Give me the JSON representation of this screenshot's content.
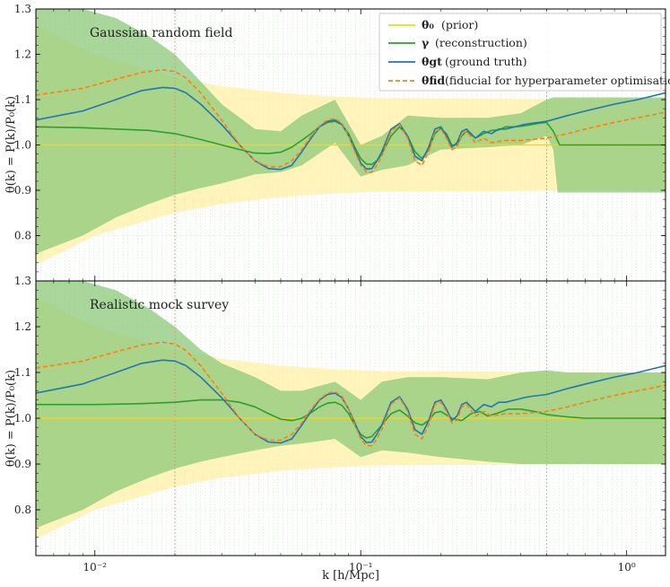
{
  "chart_data": [
    {
      "type": "line",
      "title": "Gaussian random field",
      "xlabel": "k [h/Mpc]",
      "ylabel": "θ(k) = P(k)/P₀(k)",
      "xscale": "log",
      "xlim": [
        0.006,
        1.4
      ],
      "ylim": [
        0.7,
        1.3
      ],
      "yticks": [
        "0.8",
        "0.9",
        "1.0",
        "1.1",
        "1.2",
        "1.3"
      ],
      "xticks": [
        "10⁻²",
        "10⁻¹",
        "10⁰"
      ],
      "grid": true,
      "vertical_markers_k": [
        0.02,
        0.5
      ],
      "series": [
        {
          "name": "θ₀ (prior)",
          "color": "#f5d617",
          "x": [
            0.006,
            1.4
          ],
          "y": [
            1.0,
            1.0
          ]
        },
        {
          "name": "γ (reconstruction)",
          "color": "#2ca02c",
          "x": [
            0.006,
            0.009,
            0.012,
            0.016,
            0.02,
            0.025,
            0.03,
            0.035,
            0.04,
            0.045,
            0.05,
            0.055,
            0.06,
            0.065,
            0.07,
            0.075,
            0.08,
            0.085,
            0.09,
            0.095,
            0.1,
            0.105,
            0.11,
            0.115,
            0.12,
            0.13,
            0.14,
            0.15,
            0.16,
            0.17,
            0.18,
            0.19,
            0.2,
            0.21,
            0.22,
            0.23,
            0.24,
            0.25,
            0.27,
            0.29,
            0.31,
            0.33,
            0.35,
            0.38,
            0.41,
            0.44,
            0.47,
            0.5,
            0.53,
            0.56,
            0.6,
            0.7,
            0.9,
            1.4
          ],
          "y": [
            1.04,
            1.038,
            1.035,
            1.032,
            1.025,
            1.012,
            1.0,
            0.99,
            0.982,
            0.981,
            0.984,
            0.995,
            1.01,
            1.025,
            1.04,
            1.05,
            1.052,
            1.045,
            1.025,
            0.995,
            0.97,
            0.958,
            0.957,
            0.965,
            0.98,
            1.02,
            1.04,
            1.02,
            0.985,
            0.97,
            0.99,
            1.025,
            1.037,
            1.025,
            1.0,
            1.0,
            1.02,
            1.03,
            1.015,
            1.025,
            1.032,
            1.033,
            1.04,
            1.04,
            1.042,
            1.045,
            1.048,
            1.05,
            1.03,
            1.0,
            1.0,
            1.0,
            1.0,
            1.0
          ]
        },
        {
          "name": "θgt (ground truth)",
          "color": "#1f77b4",
          "x": [
            0.006,
            0.009,
            0.012,
            0.015,
            0.018,
            0.02,
            0.022,
            0.025,
            0.03,
            0.035,
            0.04,
            0.045,
            0.05,
            0.055,
            0.06,
            0.065,
            0.07,
            0.075,
            0.08,
            0.085,
            0.09,
            0.095,
            0.1,
            0.105,
            0.11,
            0.115,
            0.12,
            0.13,
            0.14,
            0.15,
            0.16,
            0.17,
            0.18,
            0.19,
            0.2,
            0.21,
            0.22,
            0.23,
            0.24,
            0.25,
            0.27,
            0.29,
            0.31,
            0.33,
            0.35,
            0.38,
            0.41,
            0.44,
            0.47,
            0.5,
            0.6,
            0.7,
            0.9,
            1.1,
            1.4
          ],
          "y": [
            1.055,
            1.075,
            1.1,
            1.12,
            1.127,
            1.125,
            1.115,
            1.09,
            1.045,
            1.0,
            0.965,
            0.948,
            0.946,
            0.955,
            0.985,
            1.015,
            1.04,
            1.052,
            1.055,
            1.045,
            1.02,
            0.99,
            0.96,
            0.947,
            0.948,
            0.965,
            0.985,
            1.035,
            1.047,
            1.02,
            0.975,
            0.965,
            0.995,
            1.035,
            1.04,
            1.02,
            0.995,
            1.005,
            1.03,
            1.035,
            1.015,
            1.03,
            1.025,
            1.035,
            1.035,
            1.04,
            1.045,
            1.048,
            1.05,
            1.052,
            1.065,
            1.075,
            1.09,
            1.1,
            1.115
          ]
        },
        {
          "name": "θfid (fiducial for hyperparameter optimisation)",
          "color": "#ff7f0e",
          "dashed": true,
          "x": [
            0.006,
            0.009,
            0.012,
            0.015,
            0.018,
            0.02,
            0.022,
            0.025,
            0.03,
            0.035,
            0.04,
            0.045,
            0.05,
            0.055,
            0.06,
            0.065,
            0.07,
            0.075,
            0.08,
            0.085,
            0.09,
            0.095,
            0.1,
            0.105,
            0.11,
            0.115,
            0.12,
            0.13,
            0.14,
            0.15,
            0.16,
            0.17,
            0.18,
            0.19,
            0.2,
            0.21,
            0.22,
            0.23,
            0.24,
            0.25,
            0.27,
            0.29,
            0.31,
            0.35,
            0.4,
            0.5,
            0.6,
            0.7,
            0.9,
            1.1,
            1.4
          ],
          "y": [
            1.11,
            1.125,
            1.145,
            1.16,
            1.166,
            1.162,
            1.148,
            1.115,
            1.055,
            1.0,
            0.965,
            0.952,
            0.952,
            0.965,
            0.99,
            1.02,
            1.042,
            1.055,
            1.058,
            1.048,
            1.02,
            0.985,
            0.955,
            0.94,
            0.94,
            0.955,
            0.975,
            1.03,
            1.045,
            1.015,
            0.965,
            0.955,
            0.985,
            1.03,
            1.035,
            1.015,
            0.99,
            0.995,
            1.025,
            1.03,
            1.005,
            1.015,
            1.005,
            1.01,
            1.01,
            1.015,
            1.025,
            1.035,
            1.05,
            1.06,
            1.072
          ]
        }
      ],
      "bands": [
        {
          "name": "prior band",
          "color": "#fff2b0",
          "x": [
            0.006,
            0.01,
            0.02,
            0.03,
            0.05,
            0.08,
            0.12,
            1.4
          ],
          "lower": [
            0.735,
            0.8,
            0.85,
            0.87,
            0.885,
            0.893,
            0.897,
            0.9
          ],
          "upper": [
            1.265,
            1.2,
            1.15,
            1.13,
            1.115,
            1.107,
            1.103,
            1.1
          ]
        },
        {
          "name": "reconstruction band",
          "color": "#8cc97a",
          "x": [
            0.006,
            0.009,
            0.012,
            0.016,
            0.02,
            0.025,
            0.03,
            0.04,
            0.05,
            0.06,
            0.08,
            0.1,
            0.12,
            0.15,
            0.2,
            0.3,
            0.4,
            0.5,
            0.53,
            0.55,
            1.4
          ],
          "lower": [
            0.76,
            0.8,
            0.84,
            0.87,
            0.89,
            0.905,
            0.915,
            0.935,
            0.94,
            0.955,
            1.005,
            0.93,
            0.945,
            0.955,
            0.99,
            0.995,
            1.0,
            1.02,
            0.99,
            0.895,
            0.895
          ],
          "upper": [
            1.3,
            1.3,
            1.28,
            1.24,
            1.2,
            1.14,
            1.09,
            1.035,
            1.03,
            1.065,
            1.1,
            1.0,
            1.02,
            1.065,
            1.06,
            1.06,
            1.07,
            1.1,
            1.105,
            1.105,
            1.105
          ]
        }
      ]
    },
    {
      "type": "line",
      "title": "Realistic mock survey",
      "xlabel": "k [h/Mpc]",
      "ylabel": "θ(k) = P(k)/P₀(k)",
      "xscale": "log",
      "xlim": [
        0.006,
        1.4
      ],
      "ylim": [
        0.7,
        1.3
      ],
      "yticks": [
        "0.8",
        "0.9",
        "1.0",
        "1.1",
        "1.2",
        "1.3"
      ],
      "xticks": [
        "10⁻²",
        "10⁻¹",
        "10⁰"
      ],
      "grid": true,
      "vertical_markers_k": [
        0.02,
        0.5
      ],
      "series": [
        {
          "name": "θ₀ (prior)",
          "color": "#f5d617",
          "x": [
            0.006,
            1.4
          ],
          "y": [
            1.0,
            1.0
          ]
        },
        {
          "name": "γ (reconstruction)",
          "color": "#2ca02c",
          "x": [
            0.006,
            0.01,
            0.015,
            0.02,
            0.025,
            0.03,
            0.035,
            0.04,
            0.045,
            0.05,
            0.055,
            0.06,
            0.065,
            0.07,
            0.075,
            0.08,
            0.085,
            0.09,
            0.095,
            0.1,
            0.105,
            0.11,
            0.12,
            0.13,
            0.14,
            0.15,
            0.16,
            0.17,
            0.18,
            0.19,
            0.2,
            0.22,
            0.24,
            0.26,
            0.28,
            0.3,
            0.33,
            0.36,
            0.4,
            0.45,
            0.5,
            0.6,
            0.7,
            0.9,
            1.1,
            1.4
          ],
          "y": [
            1.03,
            1.03,
            1.032,
            1.035,
            1.04,
            1.04,
            1.035,
            1.025,
            1.01,
            0.998,
            0.995,
            1.0,
            1.012,
            1.025,
            1.033,
            1.035,
            1.028,
            1.01,
            0.985,
            0.965,
            0.957,
            0.96,
            0.985,
            1.01,
            1.018,
            1.005,
            0.99,
            0.985,
            0.995,
            1.012,
            1.015,
            1.0,
            0.995,
            1.01,
            1.015,
            1.005,
            1.012,
            1.02,
            1.02,
            1.015,
            1.008,
            1.003,
            1.0,
            1.0,
            1.0,
            1.0
          ]
        },
        {
          "name": "θgt (ground truth)",
          "color": "#1f77b4",
          "x": [
            0.006,
            0.009,
            0.012,
            0.015,
            0.018,
            0.02,
            0.022,
            0.025,
            0.03,
            0.035,
            0.04,
            0.045,
            0.05,
            0.055,
            0.06,
            0.065,
            0.07,
            0.075,
            0.08,
            0.085,
            0.09,
            0.095,
            0.1,
            0.105,
            0.11,
            0.115,
            0.12,
            0.13,
            0.14,
            0.15,
            0.16,
            0.17,
            0.18,
            0.19,
            0.2,
            0.21,
            0.22,
            0.23,
            0.24,
            0.25,
            0.27,
            0.29,
            0.31,
            0.33,
            0.35,
            0.38,
            0.41,
            0.44,
            0.47,
            0.5,
            0.6,
            0.7,
            0.9,
            1.1,
            1.4
          ],
          "y": [
            1.055,
            1.075,
            1.1,
            1.12,
            1.127,
            1.125,
            1.115,
            1.09,
            1.045,
            1.0,
            0.965,
            0.948,
            0.946,
            0.955,
            0.985,
            1.015,
            1.04,
            1.052,
            1.055,
            1.045,
            1.02,
            0.99,
            0.96,
            0.947,
            0.948,
            0.965,
            0.985,
            1.035,
            1.047,
            1.02,
            0.975,
            0.965,
            0.995,
            1.035,
            1.04,
            1.02,
            0.995,
            1.005,
            1.03,
            1.035,
            1.015,
            1.03,
            1.025,
            1.035,
            1.035,
            1.04,
            1.045,
            1.048,
            1.05,
            1.052,
            1.065,
            1.075,
            1.09,
            1.1,
            1.115
          ]
        },
        {
          "name": "θfid (fiducial for hyperparameter optimisation)",
          "color": "#ff7f0e",
          "dashed": true,
          "x": [
            0.006,
            0.009,
            0.012,
            0.015,
            0.018,
            0.02,
            0.022,
            0.025,
            0.03,
            0.035,
            0.04,
            0.045,
            0.05,
            0.055,
            0.06,
            0.065,
            0.07,
            0.075,
            0.08,
            0.085,
            0.09,
            0.095,
            0.1,
            0.105,
            0.11,
            0.115,
            0.12,
            0.13,
            0.14,
            0.15,
            0.16,
            0.17,
            0.18,
            0.19,
            0.2,
            0.21,
            0.22,
            0.23,
            0.24,
            0.25,
            0.27,
            0.29,
            0.31,
            0.35,
            0.4,
            0.5,
            0.6,
            0.7,
            0.9,
            1.1,
            1.4
          ],
          "y": [
            1.11,
            1.125,
            1.145,
            1.16,
            1.166,
            1.162,
            1.148,
            1.115,
            1.055,
            1.0,
            0.965,
            0.952,
            0.952,
            0.965,
            0.99,
            1.02,
            1.042,
            1.055,
            1.058,
            1.048,
            1.02,
            0.985,
            0.955,
            0.94,
            0.94,
            0.955,
            0.975,
            1.03,
            1.045,
            1.015,
            0.965,
            0.955,
            0.985,
            1.03,
            1.035,
            1.015,
            0.99,
            0.995,
            1.025,
            1.03,
            1.005,
            1.015,
            1.005,
            1.01,
            1.01,
            1.015,
            1.025,
            1.035,
            1.05,
            1.06,
            1.072
          ]
        }
      ],
      "bands": [
        {
          "name": "prior band",
          "color": "#fff2b0",
          "x": [
            0.006,
            0.01,
            0.02,
            0.03,
            0.05,
            0.08,
            0.12,
            1.4
          ],
          "lower": [
            0.735,
            0.8,
            0.85,
            0.87,
            0.885,
            0.893,
            0.897,
            0.9
          ],
          "upper": [
            1.265,
            1.2,
            1.15,
            1.13,
            1.115,
            1.107,
            1.103,
            1.1
          ]
        },
        {
          "name": "reconstruction band",
          "color": "#8cc97a",
          "x": [
            0.006,
            0.009,
            0.012,
            0.016,
            0.02,
            0.025,
            0.03,
            0.04,
            0.05,
            0.06,
            0.08,
            0.1,
            0.12,
            0.15,
            0.2,
            0.3,
            0.4,
            0.5,
            0.6,
            0.8,
            1.4
          ],
          "lower": [
            0.76,
            0.8,
            0.84,
            0.87,
            0.89,
            0.905,
            0.915,
            0.93,
            0.94,
            0.945,
            0.955,
            0.915,
            0.93,
            0.925,
            0.915,
            0.905,
            0.9,
            0.9,
            0.9,
            0.9,
            0.9
          ],
          "upper": [
            1.3,
            1.3,
            1.28,
            1.24,
            1.2,
            1.15,
            1.12,
            1.09,
            1.06,
            1.06,
            1.08,
            1.04,
            1.08,
            1.09,
            1.09,
            1.085,
            1.1,
            1.105,
            1.1,
            1.1,
            1.1
          ]
        }
      ]
    }
  ],
  "legend": {
    "entries": [
      {
        "symbol": "θ₀",
        "text": "(prior)",
        "color": "#f5d617",
        "dashed": false
      },
      {
        "symbol": "γ",
        "text": "(reconstruction)",
        "color": "#2ca02c",
        "dashed": false
      },
      {
        "symbol": "θgt",
        "text": "(ground truth)",
        "color": "#1f77b4",
        "dashed": false
      },
      {
        "symbol": "θfid",
        "text": "(fiducial for hyperparameter optimisation)",
        "color": "#ff7f0e",
        "dashed": true
      }
    ],
    "position": "top-right of upper panel"
  },
  "xlabel_text": "k [h/Mpc]",
  "ylabel_text": "θ(k) = P(k)/P₀(k)",
  "colors": {
    "grid": "#cfe8cf",
    "marker": "#e88888"
  }
}
